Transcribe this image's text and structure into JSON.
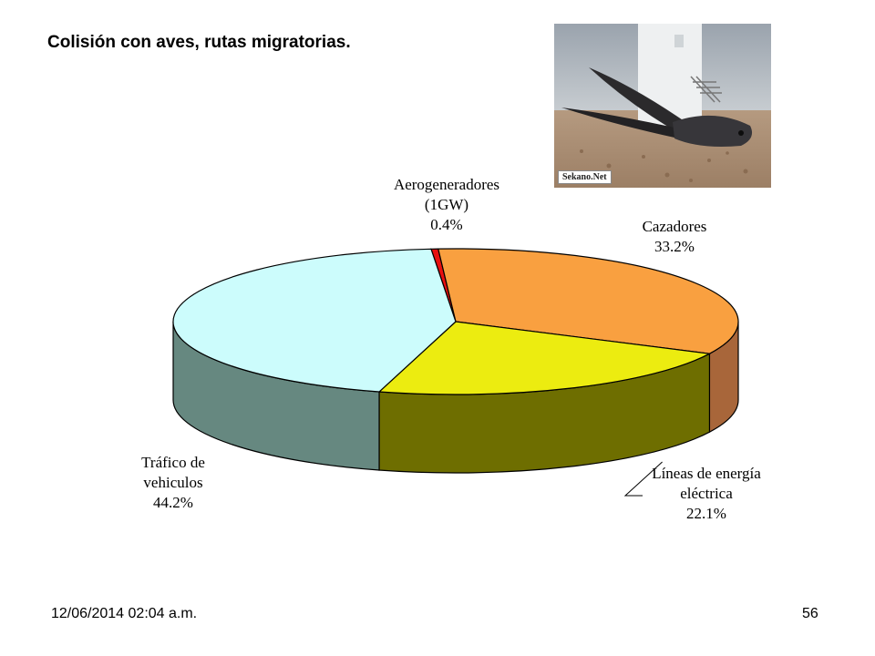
{
  "slide": {
    "title": "Colisión con aves, rutas migratorias.",
    "date": "12/06/2014 02:04 a.m.",
    "page_number": "56"
  },
  "photo": {
    "watermark": "Sekano.Net"
  },
  "chart_data": {
    "type": "pie",
    "style": "3d",
    "slices": [
      {
        "label_lines": [
          "Aerogeneradores",
          "(1GW)"
        ],
        "value": 0.4,
        "value_text": "0.4%",
        "top_color": "#e81010",
        "side_color": "#a00000"
      },
      {
        "label_lines": [
          "Cazadores"
        ],
        "value": 33.2,
        "value_text": "33.2%",
        "top_color": "#f9a040",
        "side_color": "#a8663a"
      },
      {
        "label_lines": [
          "Líneas de energía",
          "eléctrica"
        ],
        "value": 22.1,
        "value_text": "22.1%",
        "top_color": "#ecec10",
        "side_color": "#6e6e00"
      },
      {
        "label_lines": [
          "Tráfico de",
          "vehiculos"
        ],
        "value": 44.2,
        "value_text": "44.2%",
        "top_color": "#ccfcfc",
        "side_color": "#668880"
      }
    ]
  }
}
